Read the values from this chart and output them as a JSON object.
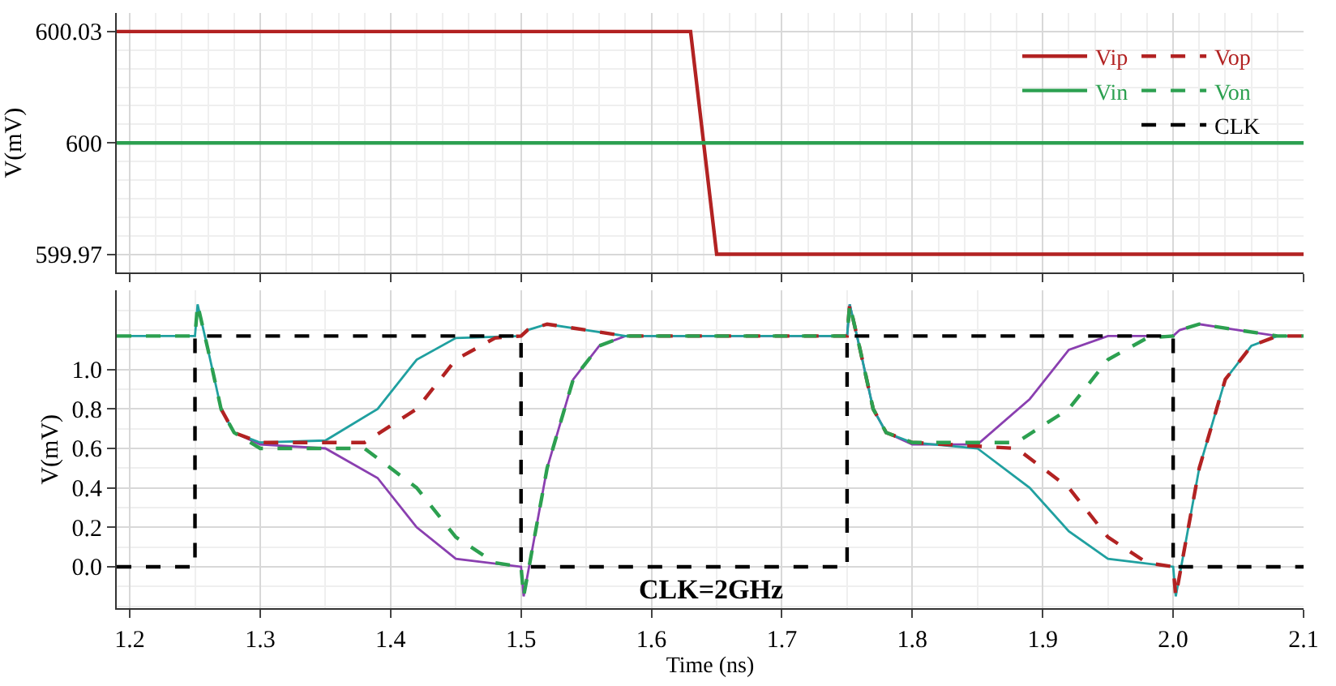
{
  "chart_data": [
    {
      "type": "line",
      "ylabel": "V(mV)",
      "xlim": [
        1.19,
        2.1
      ],
      "ylim": [
        599.965,
        600.035
      ],
      "yticks": [
        599.97,
        600,
        600.03
      ],
      "tick_labels": "y",
      "grid": true,
      "legend": "top right",
      "marker": "none",
      "series": [
        {
          "name": "Vip",
          "color": "#b22222",
          "line_style": "solid",
          "x": [
            1.19,
            1.63,
            1.65,
            2.1
          ],
          "values": [
            600.03,
            600.03,
            599.97,
            599.97
          ]
        },
        {
          "name": "Vin",
          "color": "#2ca050",
          "line_style": "solid",
          "x": [
            1.19,
            2.1
          ],
          "values": [
            600,
            600
          ]
        }
      ]
    },
    {
      "type": "line",
      "ylabel": "V(mV)",
      "xlabel": "Time (ns)",
      "xlim": [
        1.19,
        2.1
      ],
      "ylim": [
        -0.21,
        1.4
      ],
      "grid": true,
      "marker": "none",
      "legend": "top right",
      "xticks": [
        {
          "value": 1.2,
          "label": "1.2"
        },
        {
          "value": 1.3,
          "label": "1.3"
        },
        {
          "value": 1.4,
          "label": "1.4"
        },
        {
          "value": 1.5,
          "label": "1.5"
        },
        {
          "value": 1.6,
          "label": "1.6"
        },
        {
          "value": 1.7,
          "label": "1.7"
        },
        {
          "value": 1.8,
          "label": "1.8"
        },
        {
          "value": 1.9,
          "label": "1.9"
        },
        {
          "value": 2.0,
          "label": "2.0"
        },
        {
          "value": 2.1,
          "label": "2.1"
        }
      ],
      "yticks": [
        {
          "value": 0,
          "label": "0.0"
        },
        {
          "value": 0.2,
          "label": "0.2"
        },
        {
          "value": 0.4,
          "label": "0.4"
        },
        {
          "value": 0.6,
          "label": "0.6"
        },
        {
          "value": 0.8,
          "label": "0.8"
        },
        {
          "value": 1.0,
          "label": "1.0"
        }
      ],
      "annotations": [
        "CLK=2GHz"
      ],
      "series": [
        {
          "color": "#8a3fb0",
          "line_style": "solid",
          "x": [
            1.27,
            1.28,
            1.3,
            1.35,
            1.39,
            1.42,
            1.45,
            1.5,
            1.502,
            1.52,
            1.54,
            1.56,
            1.58,
            1.75,
            1.752,
            1.76,
            1.77,
            1.78,
            1.8,
            1.85,
            1.89,
            1.92,
            1.95,
            2.0,
            2.005,
            2.02,
            2.05,
            2.08,
            2.1
          ],
          "values": [
            0.8,
            0.68,
            0.62,
            0.6,
            0.45,
            0.2,
            0.04,
            0.0,
            -0.15,
            0.5,
            0.95,
            1.12,
            1.17,
            1.17,
            1.33,
            1.1,
            0.8,
            0.68,
            0.62,
            0.62,
            0.85,
            1.1,
            1.17,
            1.17,
            1.2,
            1.23,
            1.2,
            1.17,
            1.17
          ]
        },
        {
          "color": "#20a0a0",
          "line_style": "solid",
          "x": [
            1.19,
            1.25,
            1.252,
            1.26,
            1.27,
            1.28,
            1.3,
            1.35,
            1.39,
            1.42,
            1.45,
            1.5,
            1.505,
            1.52,
            1.55,
            1.58,
            1.75,
            1.752,
            1.76,
            1.77,
            1.78,
            1.8,
            1.85,
            1.89,
            1.92,
            1.95,
            2.0,
            2.002,
            2.02,
            2.04,
            2.06,
            2.08,
            2.1
          ],
          "values": [
            1.17,
            1.17,
            1.33,
            1.1,
            0.8,
            0.68,
            0.63,
            0.64,
            0.8,
            1.05,
            1.16,
            1.17,
            1.2,
            1.23,
            1.2,
            1.17,
            1.17,
            1.33,
            1.1,
            0.8,
            0.68,
            0.63,
            0.6,
            0.4,
            0.18,
            0.04,
            0.0,
            -0.15,
            0.5,
            0.95,
            1.12,
            1.17,
            1.17
          ]
        },
        {
          "name": "Vop",
          "color": "#b22222",
          "line_style": "dashed",
          "x": [
            1.27,
            1.28,
            1.3,
            1.38,
            1.42,
            1.45,
            1.48,
            1.5,
            1.505,
            1.52,
            1.55,
            1.58,
            1.75,
            1.752,
            1.76,
            1.77,
            1.78,
            1.8,
            1.88,
            1.92,
            1.95,
            1.98,
            2.0,
            2.002,
            2.02,
            2.04,
            2.06,
            2.08,
            2.1
          ],
          "values": [
            0.8,
            0.68,
            0.63,
            0.63,
            0.8,
            1.05,
            1.16,
            1.17,
            1.2,
            1.23,
            1.2,
            1.17,
            1.17,
            1.33,
            1.1,
            0.8,
            0.68,
            0.63,
            0.6,
            0.4,
            0.15,
            0.02,
            0.0,
            -0.15,
            0.5,
            0.95,
            1.12,
            1.17,
            1.17
          ]
        },
        {
          "name": "Von",
          "color": "#2ca050",
          "line_style": "dashed",
          "x": [
            1.19,
            1.25,
            1.252,
            1.26,
            1.27,
            1.28,
            1.3,
            1.38,
            1.42,
            1.45,
            1.48,
            1.5,
            1.502,
            1.52,
            1.54,
            1.56,
            1.58,
            1.75,
            1.752,
            1.76,
            1.77,
            1.78,
            1.8,
            1.88,
            1.92,
            1.95,
            1.98,
            2.0,
            2.005,
            2.02,
            2.05,
            2.08,
            2.1
          ],
          "values": [
            1.17,
            1.17,
            1.33,
            1.1,
            0.8,
            0.68,
            0.6,
            0.6,
            0.4,
            0.15,
            0.02,
            0.0,
            -0.15,
            0.5,
            0.95,
            1.12,
            1.17,
            1.17,
            1.33,
            1.1,
            0.8,
            0.68,
            0.63,
            0.63,
            0.8,
            1.05,
            1.16,
            1.17,
            1.2,
            1.23,
            1.2,
            1.17,
            1.17
          ]
        },
        {
          "name": "CLK",
          "color": "#000000",
          "line_style": "dashed",
          "x": [
            1.19,
            1.25,
            1.25,
            1.5,
            1.5,
            1.75,
            1.75,
            2.0,
            2.0,
            2.1
          ],
          "values": [
            0,
            0,
            1.17,
            1.17,
            0,
            0,
            1.17,
            1.17,
            0,
            0
          ]
        }
      ]
    }
  ]
}
